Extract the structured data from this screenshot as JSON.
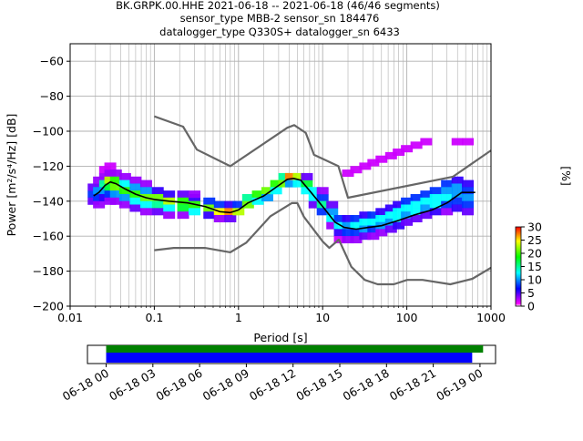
{
  "chart_data": [
    {
      "type": "heatmap",
      "title_lines": [
        "BK.GRPK.00.HHE   2021-06-18 -- 2021-06-18  (46/46 segments)",
        "sensor_type MBB-2 sensor_sn 184476",
        "datalogger_type Q330S+ datalogger_sn 6433"
      ],
      "xlabel": "Period [s]",
      "ylabel": "Power [m²/s⁴/Hz] [dB]",
      "xscale": "log",
      "xlim": [
        0.01,
        1000
      ],
      "ylim": [
        -200,
        -50
      ],
      "xticks": [
        0.01,
        0.1,
        1,
        10,
        100,
        1000
      ],
      "xtick_labels": [
        "0.01",
        "0.1",
        "1",
        "10",
        "100",
        "1000"
      ],
      "yticks": [
        -200,
        -180,
        -160,
        -140,
        -120,
        -100,
        -80,
        -60
      ],
      "ytick_labels": [
        "−200",
        "−180",
        "−160",
        "−140",
        "−120",
        "−100",
        "−80",
        "−60"
      ],
      "grid": true,
      "colorbar": {
        "label": "[%]",
        "ticks": [
          0,
          5,
          10,
          15,
          20,
          25,
          30
        ],
        "tick_labels": [
          "0",
          "5",
          "10",
          "15",
          "20",
          "25",
          "30"
        ],
        "range": [
          0,
          30
        ],
        "colors": [
          "#ff00ff",
          "#0000ff",
          "#00ffff",
          "#00ff00",
          "#ffff00",
          "#ff0000"
        ]
      },
      "series": [
        {
          "style": "mean",
          "color": "#000000",
          "points": [
            [
              0.019,
              -137
            ],
            [
              0.022,
              -135
            ],
            [
              0.026,
              -131
            ],
            [
              0.03,
              -129
            ],
            [
              0.035,
              -130
            ],
            [
              0.045,
              -133
            ],
            [
              0.06,
              -136
            ],
            [
              0.08,
              -138
            ],
            [
              0.1,
              -139
            ],
            [
              0.15,
              -140
            ],
            [
              0.25,
              -141
            ],
            [
              0.4,
              -143
            ],
            [
              0.6,
              -146
            ],
            [
              0.8,
              -146.5
            ],
            [
              1,
              -145
            ],
            [
              1.3,
              -141
            ],
            [
              2,
              -137
            ],
            [
              3,
              -131
            ],
            [
              3.8,
              -127.5
            ],
            [
              4.5,
              -127
            ],
            [
              5.5,
              -128
            ],
            [
              7,
              -134
            ],
            [
              10,
              -143
            ],
            [
              14,
              -152
            ],
            [
              18,
              -155
            ],
            [
              25,
              -156
            ],
            [
              35,
              -155
            ],
            [
              50,
              -154
            ],
            [
              80,
              -151
            ],
            [
              120,
              -148
            ],
            [
              200,
              -145
            ],
            [
              300,
              -141
            ],
            [
              450,
              -135
            ],
            [
              650,
              -135
            ]
          ]
        },
        {
          "style": "noise_model_high",
          "color": "#666666",
          "points": [
            [
              0.1,
              -91.5
            ],
            [
              0.22,
              -97.4
            ],
            [
              0.32,
              -110.5
            ],
            [
              0.8,
              -120
            ],
            [
              3.8,
              -98
            ],
            [
              4.6,
              -96.5
            ],
            [
              6.3,
              -101
            ],
            [
              7.9,
              -113.5
            ],
            [
              15.4,
              -120
            ],
            [
              20,
              -138
            ],
            [
              354,
              -126
            ],
            [
              1000,
              -111
            ]
          ]
        },
        {
          "style": "noise_model_low",
          "color": "#666666",
          "points": [
            [
              0.1,
              -168
            ],
            [
              0.17,
              -166.7
            ],
            [
              0.4,
              -166.7
            ],
            [
              0.8,
              -169.2
            ],
            [
              1.24,
              -163.7
            ],
            [
              2.4,
              -148.6
            ],
            [
              4.3,
              -141.1
            ],
            [
              5,
              -141.1
            ],
            [
              6,
              -149
            ],
            [
              10,
              -163
            ],
            [
              12,
              -166.7
            ],
            [
              15.6,
              -162
            ],
            [
              21.9,
              -177.5
            ],
            [
              31.6,
              -185
            ],
            [
              45,
              -187.5
            ],
            [
              70,
              -187.5
            ],
            [
              101,
              -185
            ],
            [
              154,
              -185
            ],
            [
              328,
              -187.5
            ],
            [
              600,
              -184.4
            ],
            [
              1000,
              -178
            ]
          ]
        }
      ],
      "heatmap_cells": [
        [
          0.019,
          -136,
          6
        ],
        [
          0.019,
          -132,
          3
        ],
        [
          0.019,
          -140,
          3
        ],
        [
          0.022,
          -128,
          2
        ],
        [
          0.022,
          -134,
          8
        ],
        [
          0.022,
          -138,
          6
        ],
        [
          0.022,
          -142,
          2
        ],
        [
          0.026,
          -126,
          2
        ],
        [
          0.026,
          -130,
          12
        ],
        [
          0.026,
          -134,
          8
        ],
        [
          0.026,
          -138,
          4
        ],
        [
          0.026,
          -122,
          1
        ],
        [
          0.03,
          -124,
          2
        ],
        [
          0.03,
          -128,
          20
        ],
        [
          0.03,
          -132,
          14
        ],
        [
          0.03,
          -136,
          6
        ],
        [
          0.03,
          -140,
          2
        ],
        [
          0.03,
          -120,
          1
        ],
        [
          0.035,
          -124,
          2
        ],
        [
          0.035,
          -128,
          16
        ],
        [
          0.035,
          -132,
          18
        ],
        [
          0.035,
          -136,
          8
        ],
        [
          0.035,
          -140,
          2
        ],
        [
          0.045,
          -126,
          2
        ],
        [
          0.045,
          -130,
          10
        ],
        [
          0.045,
          -134,
          16
        ],
        [
          0.045,
          -138,
          8
        ],
        [
          0.045,
          -142,
          2
        ],
        [
          0.06,
          -128,
          2
        ],
        [
          0.06,
          -132,
          8
        ],
        [
          0.06,
          -136,
          16
        ],
        [
          0.06,
          -140,
          10
        ],
        [
          0.06,
          -144,
          3
        ],
        [
          0.08,
          -130,
          2
        ],
        [
          0.08,
          -134,
          8
        ],
        [
          0.08,
          -138,
          18
        ],
        [
          0.08,
          -142,
          10
        ],
        [
          0.08,
          -146,
          2
        ],
        [
          0.11,
          -134,
          4
        ],
        [
          0.11,
          -138,
          18
        ],
        [
          0.11,
          -142,
          12
        ],
        [
          0.11,
          -146,
          3
        ],
        [
          0.15,
          -136,
          4
        ],
        [
          0.15,
          -140,
          20
        ],
        [
          0.15,
          -144,
          10
        ],
        [
          0.15,
          -148,
          2
        ],
        [
          0.22,
          -136,
          3
        ],
        [
          0.22,
          -140,
          16
        ],
        [
          0.22,
          -144,
          14
        ],
        [
          0.22,
          -148,
          2
        ],
        [
          0.3,
          -138,
          4
        ],
        [
          0.3,
          -142,
          16
        ],
        [
          0.3,
          -146,
          10
        ],
        [
          0.3,
          -136,
          2
        ],
        [
          0.45,
          -140,
          6
        ],
        [
          0.45,
          -144,
          18
        ],
        [
          0.45,
          -148,
          4
        ],
        [
          0.6,
          -142,
          6
        ],
        [
          0.6,
          -146,
          22
        ],
        [
          0.6,
          -150,
          2
        ],
        [
          0.8,
          -142,
          4
        ],
        [
          0.8,
          -146,
          26
        ],
        [
          0.8,
          -150,
          3
        ],
        [
          1.0,
          -142,
          6
        ],
        [
          1.0,
          -146,
          20
        ],
        [
          1.3,
          -138,
          12
        ],
        [
          1.3,
          -142,
          18
        ],
        [
          1.7,
          -136,
          16
        ],
        [
          1.7,
          -140,
          10
        ],
        [
          2.2,
          -134,
          18
        ],
        [
          2.2,
          -138,
          8
        ],
        [
          2.8,
          -130,
          16
        ],
        [
          2.8,
          -134,
          10
        ],
        [
          3.5,
          -126,
          12
        ],
        [
          3.5,
          -130,
          18
        ],
        [
          4.2,
          -126,
          26
        ],
        [
          4.2,
          -130,
          8
        ],
        [
          5.2,
          -126,
          20
        ],
        [
          5.2,
          -130,
          10
        ],
        [
          6.5,
          -130,
          14
        ],
        [
          6.5,
          -134,
          10
        ],
        [
          6.5,
          -126,
          3
        ],
        [
          8,
          -134,
          10
        ],
        [
          8,
          -138,
          10
        ],
        [
          8,
          -142,
          3
        ],
        [
          10,
          -138,
          6
        ],
        [
          10,
          -142,
          12
        ],
        [
          10,
          -146,
          6
        ],
        [
          10,
          -134,
          2
        ],
        [
          13,
          -146,
          8
        ],
        [
          13,
          -150,
          10
        ],
        [
          13,
          -142,
          3
        ],
        [
          13,
          -154,
          2
        ],
        [
          16,
          -150,
          6
        ],
        [
          16,
          -154,
          10
        ],
        [
          16,
          -158,
          4
        ],
        [
          16,
          -162,
          1
        ],
        [
          20,
          -150,
          4
        ],
        [
          20,
          -154,
          8
        ],
        [
          20,
          -158,
          6
        ],
        [
          20,
          -162,
          2
        ],
        [
          20,
          -124,
          1
        ],
        [
          25,
          -150,
          6
        ],
        [
          25,
          -154,
          10
        ],
        [
          25,
          -158,
          6
        ],
        [
          25,
          -162,
          2
        ],
        [
          25,
          -122,
          1
        ],
        [
          32,
          -148,
          4
        ],
        [
          32,
          -152,
          10
        ],
        [
          32,
          -156,
          8
        ],
        [
          32,
          -160,
          3
        ],
        [
          32,
          -120,
          1
        ],
        [
          40,
          -148,
          6
        ],
        [
          40,
          -152,
          10
        ],
        [
          40,
          -156,
          6
        ],
        [
          40,
          -160,
          2
        ],
        [
          40,
          -118,
          1
        ],
        [
          50,
          -146,
          4
        ],
        [
          50,
          -150,
          10
        ],
        [
          50,
          -154,
          8
        ],
        [
          50,
          -158,
          2
        ],
        [
          50,
          -116,
          1
        ],
        [
          65,
          -144,
          4
        ],
        [
          65,
          -148,
          10
        ],
        [
          65,
          -152,
          8
        ],
        [
          65,
          -156,
          3
        ],
        [
          65,
          -114,
          1
        ],
        [
          80,
          -142,
          4
        ],
        [
          80,
          -146,
          10
        ],
        [
          80,
          -150,
          10
        ],
        [
          80,
          -154,
          4
        ],
        [
          80,
          -112,
          1
        ],
        [
          100,
          -140,
          6
        ],
        [
          100,
          -144,
          10
        ],
        [
          100,
          -148,
          8
        ],
        [
          100,
          -152,
          3
        ],
        [
          100,
          -110,
          1
        ],
        [
          130,
          -138,
          6
        ],
        [
          130,
          -142,
          10
        ],
        [
          130,
          -146,
          10
        ],
        [
          130,
          -150,
          3
        ],
        [
          130,
          -108,
          1
        ],
        [
          170,
          -136,
          6
        ],
        [
          170,
          -140,
          10
        ],
        [
          170,
          -144,
          8
        ],
        [
          170,
          -148,
          3
        ],
        [
          170,
          -106,
          1
        ],
        [
          220,
          -134,
          6
        ],
        [
          220,
          -138,
          10
        ],
        [
          220,
          -142,
          10
        ],
        [
          220,
          -146,
          4
        ],
        [
          300,
          -130,
          6
        ],
        [
          300,
          -134,
          8
        ],
        [
          300,
          -138,
          10
        ],
        [
          300,
          -142,
          6
        ],
        [
          300,
          -146,
          2
        ],
        [
          400,
          -128,
          4
        ],
        [
          400,
          -132,
          8
        ],
        [
          400,
          -136,
          8
        ],
        [
          400,
          -140,
          6
        ],
        [
          400,
          -144,
          4
        ],
        [
          400,
          -106,
          1
        ],
        [
          530,
          -130,
          4
        ],
        [
          530,
          -134,
          6
        ],
        [
          530,
          -138,
          8
        ],
        [
          530,
          -142,
          6
        ],
        [
          530,
          -146,
          3
        ],
        [
          530,
          -106,
          1
        ]
      ]
    },
    {
      "type": "timeline",
      "xtick_labels": [
        "06-18 00",
        "06-18 03",
        "06-18 06",
        "06-18 09",
        "06-18 12",
        "06-18 15",
        "06-18 18",
        "06-18 21",
        "06-19 00"
      ],
      "bars": [
        {
          "color": "#008000",
          "start_hour": 0,
          "end_hour": 24.2
        },
        {
          "color": "#0000ff",
          "start_hour": 0,
          "end_hour": 23.5
        }
      ],
      "xlim_hours": [
        -1.2,
        25.0
      ]
    }
  ]
}
